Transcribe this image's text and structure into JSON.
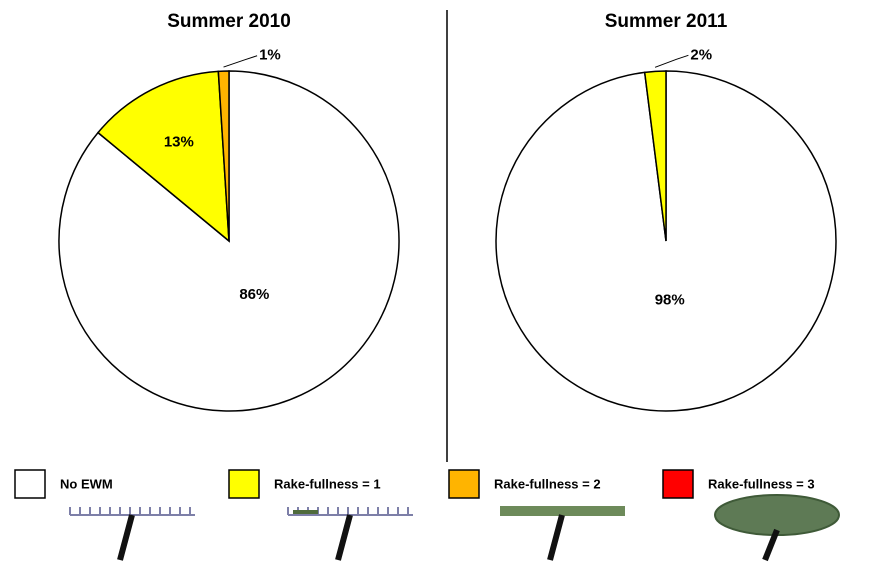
{
  "chart_data": [
    {
      "type": "pie",
      "title": "Summer 2010",
      "values": [
        86,
        13,
        1
      ],
      "value_labels": [
        "86%",
        "13%",
        "1%"
      ],
      "colors": [
        "#ffffff",
        "#ffff00",
        "#ffb400"
      ]
    },
    {
      "type": "pie",
      "title": "Summer 2011",
      "values": [
        98,
        2
      ],
      "value_labels": [
        "98%",
        "2%"
      ],
      "colors": [
        "#ffffff",
        "#ffff00"
      ]
    }
  ],
  "legend": [
    {
      "label": "No EWM",
      "color": "#ffffff"
    },
    {
      "label": "Rake-fullness = 1",
      "color": "#ffff00"
    },
    {
      "label": "Rake-fullness = 2",
      "color": "#ffb400"
    },
    {
      "label": "Rake-fullness = 3",
      "color": "#ff0000"
    }
  ]
}
